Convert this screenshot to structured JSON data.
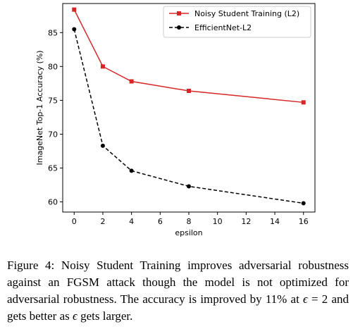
{
  "chart_data": {
    "type": "line",
    "xlabel": "epsilon",
    "ylabel": "ImageNet Top-1 Accuracy (%)",
    "x": [
      0,
      2,
      4,
      8,
      16
    ],
    "xlim": [
      -0.8,
      16.8
    ],
    "ylim": [
      58.5,
      89.3
    ],
    "xticks": [
      0,
      2,
      4,
      6,
      8,
      10,
      12,
      14,
      16
    ],
    "yticks": [
      60,
      65,
      70,
      75,
      80,
      85
    ],
    "grid": false,
    "legend_position": "top-right",
    "series": [
      {
        "name": "Noisy Student Training (L2)",
        "values": [
          88.4,
          80.0,
          77.8,
          76.4,
          74.7
        ],
        "color": "#d62728",
        "line_style": "solid",
        "marker": "square"
      },
      {
        "name": "EfficientNet-L2",
        "values": [
          85.5,
          68.3,
          64.6,
          62.3,
          59.8
        ],
        "color": "#000000",
        "line_style": "dashed",
        "marker": "circle"
      }
    ]
  },
  "caption": {
    "lead": "Figure 4: Noisy Student Training improves adversarial robustness against an FGSM attack though the model is not optimized for adversarial robustness. The accuracy is improved by 11% at ",
    "eps1": "ϵ",
    "mid": " = 2 and gets better as ",
    "eps2": "ϵ",
    "tail": " gets larger."
  }
}
